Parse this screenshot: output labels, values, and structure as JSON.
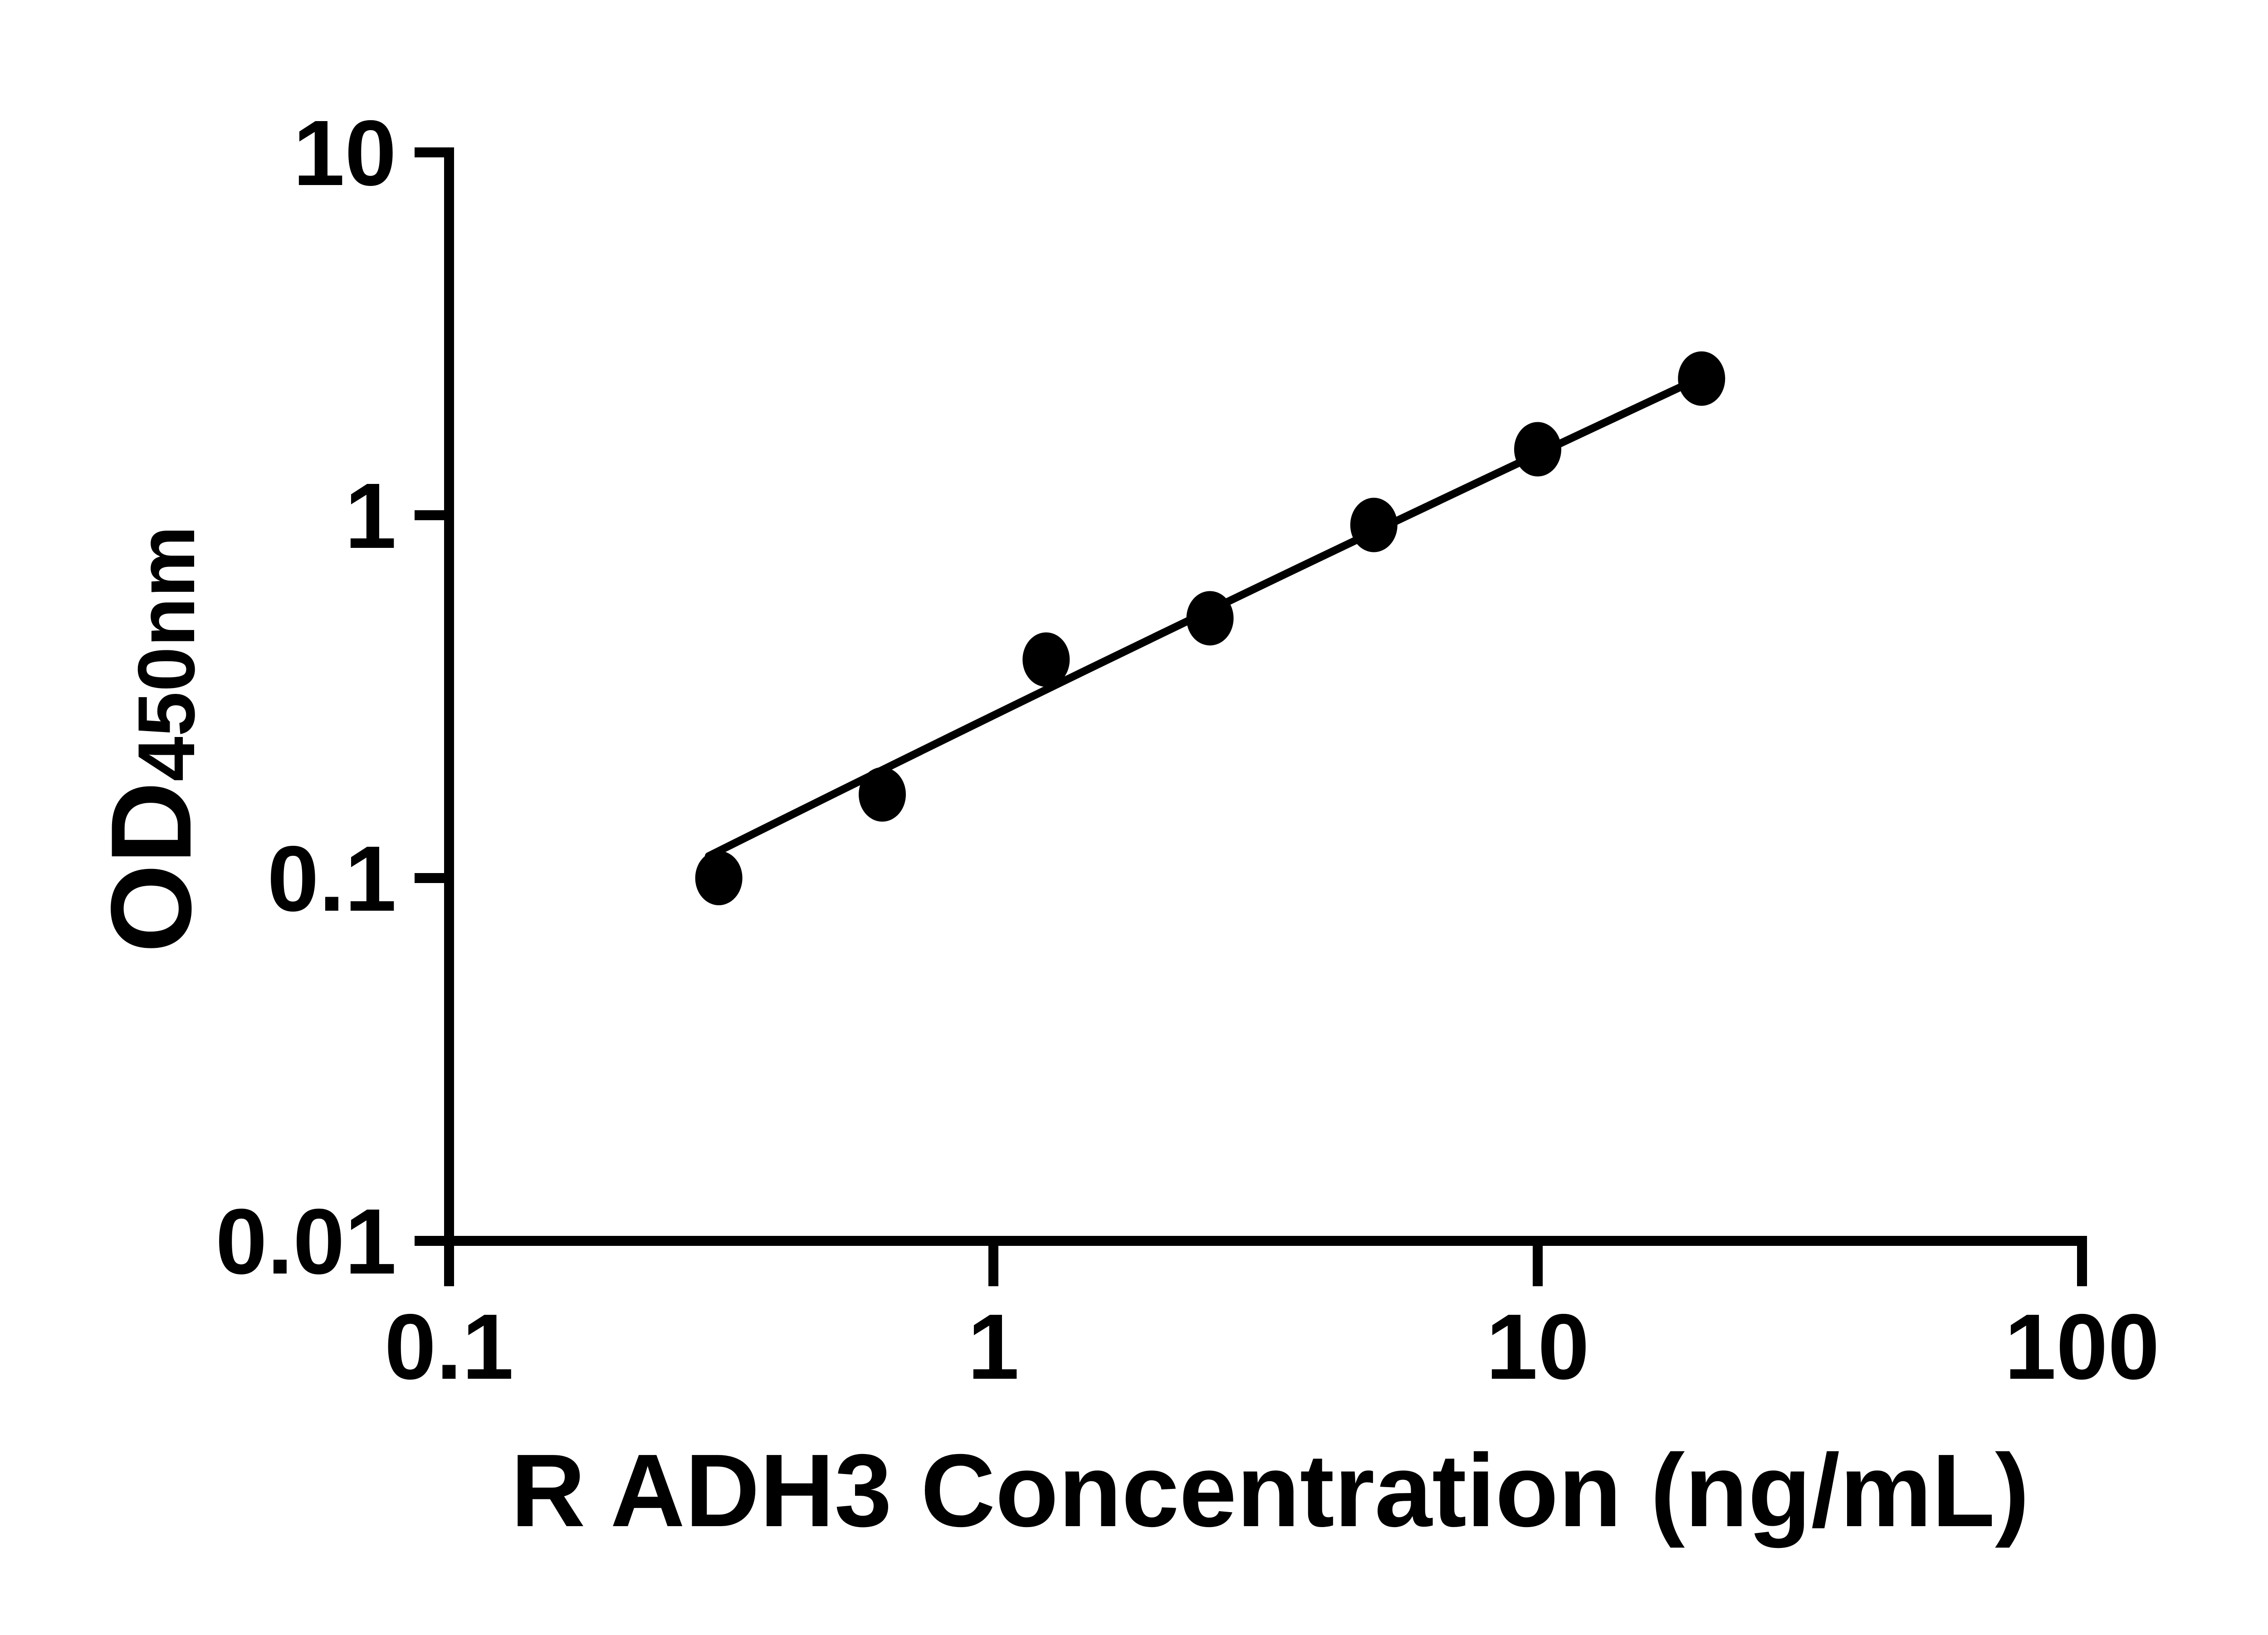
{
  "figure": {
    "background": "#ffffff",
    "description": "ELISA standard curve, log-log scatter plot with fitted line"
  },
  "chart_data": {
    "type": "scatter",
    "title": "",
    "xlabel": "R ADH3 Concentration (ng/mL)",
    "ylabel": "OD450nm",
    "ylabel_main": "OD",
    "ylabel_sub": "450nm",
    "x_scale": "log",
    "y_scale": "log",
    "xlim": [
      0.1,
      100
    ],
    "ylim": [
      0.01,
      10
    ],
    "grid": false,
    "legend": null,
    "x_ticks": [
      {
        "value": 0.1,
        "label": "0.1"
      },
      {
        "value": 1,
        "label": "1"
      },
      {
        "value": 10,
        "label": "10"
      },
      {
        "value": 100,
        "label": "100"
      }
    ],
    "y_ticks": [
      {
        "value": 0.01,
        "label": "0.01"
      },
      {
        "value": 0.1,
        "label": "0.1"
      },
      {
        "value": 1,
        "label": "1"
      },
      {
        "value": 10,
        "label": "10"
      }
    ],
    "points": [
      {
        "x": 0.313,
        "od": 0.1
      },
      {
        "x": 0.625,
        "od": 0.17
      },
      {
        "x": 1.25,
        "od": 0.4
      },
      {
        "x": 2.5,
        "od": 0.52
      },
      {
        "x": 5,
        "od": 0.94
      },
      {
        "x": 10,
        "od": 1.52
      },
      {
        "x": 20,
        "od": 2.38
      }
    ],
    "fit_line": {
      "x_start": 0.3,
      "od_start": 0.115,
      "x_end": 20.0,
      "od_end": 2.4
    },
    "colors": {
      "points": "#000000",
      "fit_line": "#000000",
      "axis": "#000000",
      "text": "#000000",
      "background": "#ffffff"
    }
  }
}
